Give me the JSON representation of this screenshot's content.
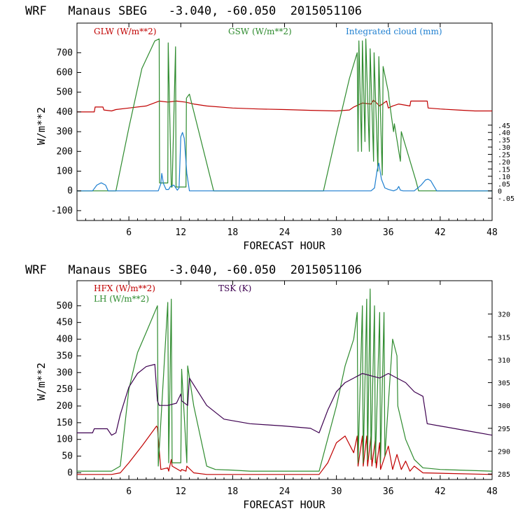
{
  "chart_data": [
    {
      "type": "line",
      "title": "WRF   Manaus SBEG   -3.040, -60.050  2015051106",
      "xlabel": "FORECAST HOUR",
      "ylabel": "W/m**2",
      "xlim": [
        0,
        48
      ],
      "ylim": [
        -150,
        850
      ],
      "x_ticks": [
        "6",
        "12",
        "18",
        "24",
        "30",
        "36",
        "42",
        "48"
      ],
      "y_ticks": [
        "-100",
        "0",
        "100",
        "200",
        "300",
        "400",
        "500",
        "600",
        "700"
      ],
      "y2_ticks": [
        "-.05",
        "0",
        ".05",
        ".10",
        ".15",
        ".20",
        ".25",
        ".30",
        ".35",
        ".40",
        ".45"
      ],
      "grid": false,
      "legend": "top",
      "series": [
        {
          "name": "GLW (W/m**2)",
          "axis": "left",
          "color": "#c00000",
          "x": [
            0,
            2.0,
            2.1,
            3.0,
            3.1,
            4.0,
            4.5,
            6,
            8,
            9.5,
            10.5,
            11.5,
            12.5,
            13.5,
            15,
            18,
            21,
            24,
            27,
            30,
            31.5,
            32,
            33,
            34,
            34.3,
            35,
            35.8,
            36,
            36.5,
            37.2,
            38.5,
            38.6,
            40.5,
            40.6,
            42,
            44,
            46,
            48
          ],
          "y": [
            400,
            400,
            425,
            425,
            410,
            405,
            412,
            420,
            430,
            455,
            450,
            455,
            450,
            440,
            430,
            420,
            415,
            412,
            408,
            405,
            410,
            425,
            445,
            440,
            460,
            430,
            455,
            420,
            430,
            440,
            430,
            455,
            455,
            420,
            415,
            410,
            405,
            405
          ]
        },
        {
          "name": "GSW (W/m**2)",
          "axis": "left",
          "color": "#2e8b2e",
          "x": [
            0,
            4.5,
            6,
            7.5,
            9,
            9.5,
            9.55,
            10.5,
            10.55,
            10.9,
            11.0,
            11.4,
            11.45,
            12.6,
            12.65,
            13.0,
            15.8,
            16,
            28.5,
            30,
            31.5,
            32.4,
            32.5,
            32.6,
            32.9,
            33.0,
            33.3,
            33.4,
            33.8,
            33.9,
            34.3,
            34.35,
            34.8,
            34.9,
            35.3,
            35.4,
            36.0,
            36.1,
            36.6,
            36.7,
            37.4,
            37.5,
            39.2,
            39.5,
            48
          ],
          "y": [
            0,
            0,
            320,
            620,
            760,
            770,
            40,
            40,
            750,
            20,
            20,
            730,
            20,
            20,
            470,
            490,
            0,
            0,
            0,
            290,
            570,
            700,
            200,
            760,
            200,
            760,
            250,
            770,
            200,
            720,
            150,
            700,
            100,
            680,
            80,
            630,
            500,
            460,
            300,
            340,
            150,
            300,
            50,
            0,
            0
          ]
        },
        {
          "name": "Integrated cloud (mm)",
          "axis": "right",
          "color": "#1e7fd0",
          "x": [
            0,
            1.8,
            2.3,
            2.8,
            3.3,
            3.6,
            4,
            9.4,
            9.7,
            9.8,
            10.0,
            10.3,
            10.6,
            10.8,
            11.2,
            11.6,
            11.8,
            12.0,
            12.2,
            12.4,
            12.7,
            13.0,
            24,
            34.0,
            34.4,
            34.7,
            34.9,
            35.2,
            35.6,
            36.0,
            36.6,
            37.0,
            37.2,
            37.4,
            37.7,
            39.0,
            39.8,
            40.3,
            40.6,
            40.9,
            41.2,
            41.6,
            48
          ],
          "y": [
            0,
            0,
            0.04,
            0.055,
            0.04,
            0.0,
            0,
            0,
            0.05,
            0.12,
            0.05,
            0.01,
            0.01,
            0.03,
            0.04,
            0.005,
            0.02,
            0.37,
            0.4,
            0.36,
            0.12,
            0.0,
            0,
            0,
            0.02,
            0.14,
            0.19,
            0.08,
            0.02,
            0.01,
            0.0,
            0.01,
            0.03,
            0.005,
            0.0,
            0.0,
            0.04,
            0.075,
            0.08,
            0.07,
            0.04,
            0.0,
            0
          ]
        }
      ]
    },
    {
      "type": "line",
      "title": "WRF   Manaus SBEG   -3.040, -60.050  2015051106",
      "xlabel": "FORECAST HOUR",
      "ylabel": "W/m**2",
      "xlim": [
        0,
        48
      ],
      "ylim": [
        -20,
        575
      ],
      "x_ticks": [
        "6",
        "12",
        "18",
        "24",
        "30",
        "36",
        "42",
        "48"
      ],
      "y_ticks": [
        "0",
        "50",
        "100",
        "150",
        "200",
        "250",
        "300",
        "350",
        "400",
        "450",
        "500"
      ],
      "y2_ticks": [
        "285",
        "290",
        "295",
        "300",
        "305",
        "310",
        "315",
        "320"
      ],
      "y2lim": [
        283.8,
        327.3
      ],
      "grid": false,
      "legend": "top-left",
      "series": [
        {
          "name": "HFX (W/m**2)",
          "axis": "left",
          "color": "#c00000",
          "x": [
            0,
            4,
            5,
            6,
            7.5,
            9.2,
            9.3,
            9.6,
            9.7,
            10.5,
            10.6,
            10.9,
            11.0,
            12.0,
            12.1,
            12.6,
            12.7,
            13.5,
            15,
            18,
            28,
            29,
            30,
            31,
            32,
            32.4,
            32.5,
            33.0,
            33.1,
            33.5,
            33.6,
            34.0,
            34.1,
            34.5,
            34.6,
            35.0,
            35.1,
            36.0,
            36.5,
            37.0,
            37.5,
            38.0,
            38.5,
            39.0,
            40,
            48
          ],
          "y": [
            -5,
            -5,
            0,
            30,
            80,
            140,
            135,
            40,
            10,
            15,
            5,
            40,
            20,
            5,
            10,
            5,
            20,
            0,
            -5,
            -5,
            -5,
            30,
            90,
            110,
            60,
            110,
            20,
            110,
            20,
            110,
            20,
            110,
            20,
            100,
            15,
            90,
            10,
            80,
            10,
            55,
            10,
            35,
            5,
            20,
            0,
            -5
          ]
        },
        {
          "name": "LH (W/m**2)",
          "axis": "left",
          "color": "#2e8b2e",
          "x": [
            0,
            4,
            5,
            6,
            7,
            8,
            9.3,
            9.4,
            10.5,
            10.6,
            10.9,
            11.0,
            11.5,
            12.0,
            12.1,
            12.7,
            12.8,
            13.5,
            15,
            16,
            18,
            20,
            24,
            28,
            30,
            31,
            32,
            32.4,
            32.5,
            33.0,
            33.1,
            33.5,
            33.6,
            33.9,
            34.0,
            34.4,
            34.5,
            35.0,
            35.1,
            35.5,
            35.6,
            36.5,
            37.0,
            37.1,
            38.0,
            39.0,
            40,
            42,
            48
          ],
          "y": [
            5,
            5,
            20,
            250,
            360,
            420,
            500,
            20,
            510,
            30,
            520,
            30,
            30,
            30,
            310,
            30,
            320,
            200,
            20,
            10,
            8,
            5,
            5,
            5,
            200,
            320,
            400,
            480,
            30,
            500,
            30,
            520,
            40,
            550,
            40,
            500,
            30,
            480,
            30,
            480,
            50,
            400,
            350,
            200,
            100,
            40,
            15,
            10,
            5
          ]
        },
        {
          "name": "TSK (K)",
          "axis": "right",
          "color": "#3d0050",
          "x": [
            0,
            1.8,
            2,
            3.5,
            4,
            4.5,
            5,
            6,
            7,
            8,
            9,
            9.3,
            9.5,
            10.5,
            11.5,
            12.0,
            12.1,
            12.8,
            13,
            15,
            17,
            20,
            24,
            27,
            28,
            29,
            30,
            31,
            32,
            33,
            34,
            35,
            36,
            37,
            38,
            39,
            40,
            40.5,
            42,
            45,
            48
          ],
          "y": [
            294,
            294,
            294.9,
            294.9,
            293.5,
            294,
            298,
            304,
            307,
            308.5,
            309,
            301,
            300,
            300,
            300.5,
            302.5,
            301,
            300,
            306,
            300,
            297,
            296,
            295.5,
            295,
            294,
            299,
            303,
            305,
            306,
            307,
            306.5,
            306,
            307,
            306,
            305,
            303,
            302,
            296,
            295.5,
            294.5,
            293.5
          ]
        }
      ]
    }
  ]
}
